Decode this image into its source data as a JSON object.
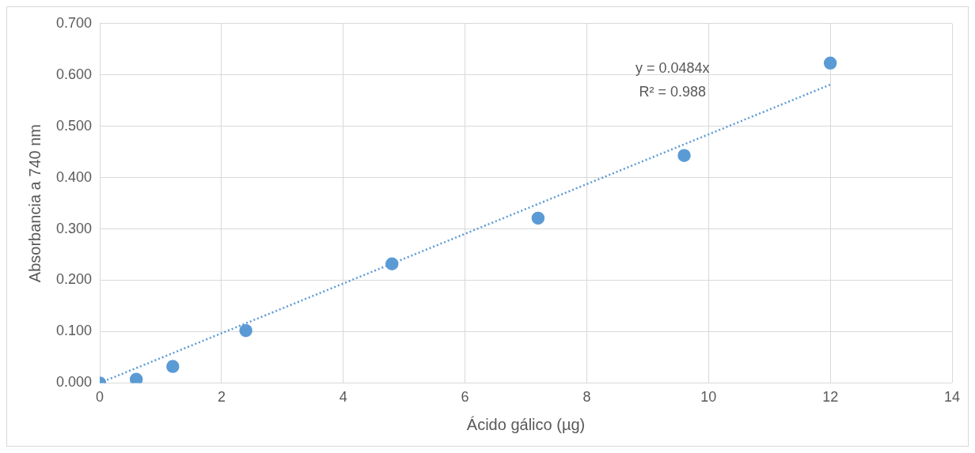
{
  "chart_data": {
    "type": "scatter",
    "xlabel": "Ácido gálico (µg)",
    "ylabel": "Absorbancia a 740 nm",
    "xlim": [
      0,
      14
    ],
    "xticks": [
      0,
      2,
      4,
      6,
      8,
      10,
      12,
      14
    ],
    "ylim": [
      0,
      0.7
    ],
    "yticks": [
      {
        "value": 0,
        "label": "0.000"
      },
      {
        "value": 0.1,
        "label": "0.100"
      },
      {
        "value": 0.2,
        "label": "0.200"
      },
      {
        "value": 0.3,
        "label": "0.300"
      },
      {
        "value": 0.4,
        "label": "0.400"
      },
      {
        "value": 0.5,
        "label": "0.500"
      },
      {
        "value": 0.6,
        "label": "0.600"
      },
      {
        "value": 0.7,
        "label": "0.700"
      }
    ],
    "grid": true,
    "legend": false,
    "annotations": [
      "y = 0.0484x",
      "R² = 0.988"
    ],
    "series": [
      {
        "type": "scatter",
        "color": "#5b9bd5",
        "marker": "circle",
        "x": [
          0,
          0.6,
          1.2,
          2.4,
          4.8,
          7.2,
          9.6,
          12
        ],
        "values": [
          0,
          0.007,
          0.032,
          0.102,
          0.232,
          0.321,
          0.443,
          0.623
        ]
      },
      {
        "type": "line",
        "color": "#5b9bd5",
        "line_style": "dotted",
        "marker": "none",
        "x": [
          0,
          12
        ],
        "values": [
          0,
          0.581
        ]
      }
    ]
  }
}
